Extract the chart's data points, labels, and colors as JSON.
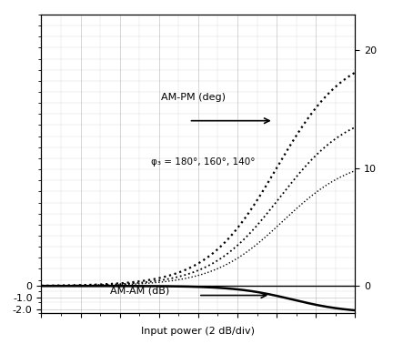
{
  "xlabel": "Input power (2 dB/div)",
  "background_color": "#ffffff",
  "grid_color": "#999999",
  "am_am_label": "AM-AM (dB)",
  "am_pm_label": "AM-PM (deg)",
  "phi3_label": "φ₃ = 180°, 160°, 140°",
  "left_yticks": [
    -2.0,
    -1.0,
    0
  ],
  "left_yticklabels": [
    "-2.0",
    "-1.0",
    "0"
  ],
  "right_yticks": [
    0,
    10,
    20
  ],
  "right_yticklabels": [
    "0",
    "10",
    "20"
  ],
  "ylim": [
    -2.3,
    23
  ],
  "am_am_color": "#000000",
  "am_pm_color": "#000000",
  "arrow_color": "#000000",
  "label_fontsize": 8,
  "annotation_fontsize": 8,
  "phi3_fontsize": 7.5
}
